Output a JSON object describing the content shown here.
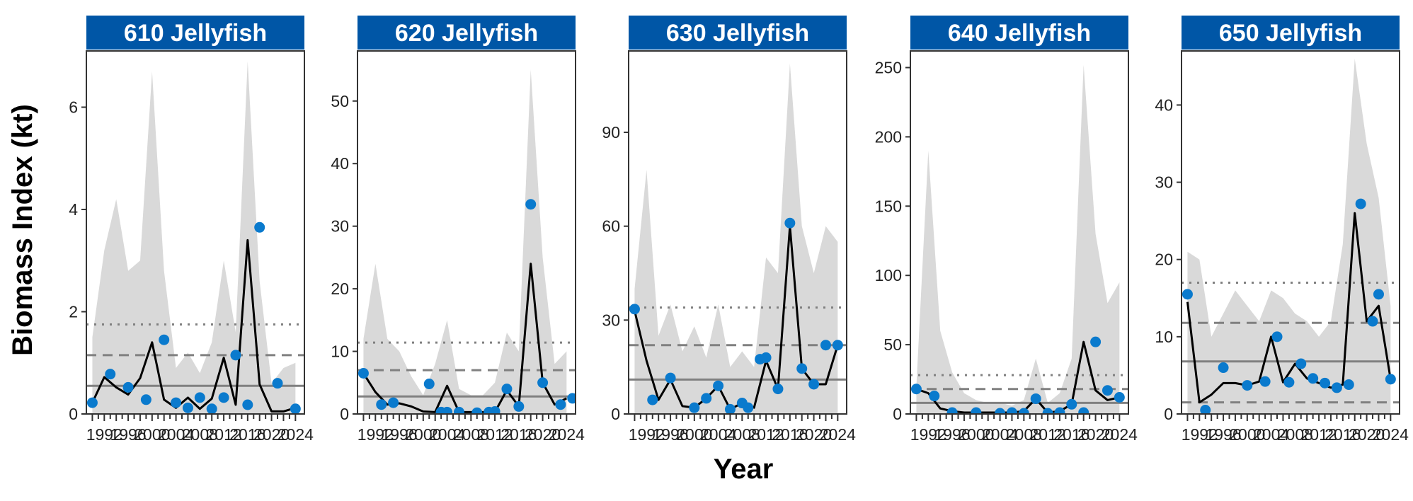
{
  "figure": {
    "ylabel": "Biomass Index (kt)",
    "xlabel": "Year",
    "colors": {
      "strip": "#0056A6",
      "point": "#0A7ACD",
      "ribbon": "#D9D9D9",
      "line": "#000000",
      "ref": "#808080"
    }
  },
  "chart_data": [
    {
      "type": "line",
      "title": "610 Jellyfish",
      "x": [
        1990,
        1992,
        1994,
        1996,
        1998,
        2000,
        2002,
        2004,
        2006,
        2008,
        2010,
        2012,
        2014,
        2016,
        2018,
        2020,
        2022,
        2024
      ],
      "ylim": [
        0,
        7.1
      ],
      "yticks": [
        0,
        2,
        4,
        6
      ],
      "xtick_labels": [
        "1992",
        "1996",
        "2000",
        "2004",
        "2008",
        "2012",
        "2016",
        "2020",
        "2024"
      ],
      "series": [
        {
          "role": "points",
          "x": [
            1990,
            1993,
            1996,
            1999,
            2002,
            2004,
            2006,
            2008,
            2010,
            2012,
            2014,
            2016,
            2018,
            2021,
            2024
          ],
          "y": [
            0.22,
            0.78,
            0.52,
            0.28,
            1.45,
            0.22,
            0.12,
            0.32,
            0.1,
            0.32,
            1.15,
            0.18,
            3.65,
            0.6,
            0.1
          ]
        },
        {
          "role": "fit",
          "y": [
            0.22,
            0.72,
            0.52,
            0.38,
            0.7,
            1.4,
            0.28,
            0.12,
            0.32,
            0.1,
            0.3,
            1.1,
            0.18,
            3.4,
            0.58,
            0.05,
            0.05,
            0.12
          ]
        },
        {
          "role": "ci_upper",
          "y": [
            1.5,
            3.2,
            4.2,
            2.8,
            3.0,
            6.7,
            2.8,
            0.9,
            1.2,
            0.8,
            1.4,
            3.0,
            1.6,
            6.9,
            2.6,
            0.6,
            0.9,
            1.0
          ]
        },
        {
          "role": "ci_lower",
          "y": [
            0,
            0,
            0,
            0,
            0,
            0,
            0,
            0,
            0,
            0,
            0,
            0,
            0,
            0,
            0,
            0,
            0,
            0
          ]
        }
      ],
      "reference_lines": {
        "solid": 0.55,
        "dashed": 1.15,
        "dotted": 1.75
      }
    },
    {
      "type": "line",
      "title": "620 Jellyfish",
      "x": [
        1990,
        1992,
        1994,
        1996,
        1998,
        2000,
        2002,
        2004,
        2006,
        2008,
        2010,
        2012,
        2014,
        2016,
        2018,
        2020,
        2022,
        2024
      ],
      "ylim": [
        0,
        58
      ],
      "yticks": [
        0,
        10,
        20,
        30,
        40,
        50
      ],
      "xtick_labels": [
        "1992",
        "1996",
        "2000",
        "2004",
        "2008",
        "2012",
        "2016",
        "2020",
        "2024"
      ],
      "series": [
        {
          "role": "points",
          "x": [
            1990,
            1993,
            1995,
            2001,
            2003,
            2004,
            2006,
            2009,
            2011,
            2012,
            2014,
            2016,
            2018,
            2020,
            2023,
            2025
          ],
          "y": [
            6.5,
            1.5,
            1.8,
            4.8,
            0.3,
            0.3,
            0.3,
            0.2,
            0.3,
            0.4,
            4.0,
            1.2,
            33.5,
            5.0,
            1.5,
            2.5
          ]
        },
        {
          "role": "fit",
          "y": [
            6.5,
            3.5,
            1.5,
            1.7,
            1.2,
            0.4,
            0.3,
            4.5,
            0.3,
            0.3,
            0.3,
            0.3,
            3.8,
            1.2,
            24.0,
            5.0,
            1.5,
            2.5
          ]
        },
        {
          "role": "ci_upper",
          "y": [
            12,
            24,
            12,
            10,
            6,
            3,
            8,
            15,
            4,
            3,
            3,
            5,
            13,
            10,
            55,
            25,
            8,
            10
          ]
        },
        {
          "role": "ci_lower",
          "y": [
            0,
            0,
            0,
            0,
            0,
            0,
            0,
            0,
            0,
            0,
            0,
            0,
            0,
            0,
            0,
            0,
            0,
            0
          ]
        }
      ],
      "reference_lines": {
        "solid": 2.8,
        "dashed": 7.0,
        "dotted": 11.4
      }
    },
    {
      "type": "line",
      "title": "630 Jellyfish",
      "x": [
        1990,
        1992,
        1994,
        1996,
        1998,
        2000,
        2002,
        2004,
        2006,
        2008,
        2010,
        2012,
        2014,
        2016,
        2018,
        2020,
        2022,
        2024
      ],
      "ylim": [
        0,
        116
      ],
      "yticks": [
        0,
        30,
        60,
        90
      ],
      "xtick_labels": [
        "1992",
        "1996",
        "2000",
        "2004",
        "2008",
        "2012",
        "2016",
        "2020",
        "2024"
      ],
      "series": [
        {
          "role": "points",
          "x": [
            1990,
            1993,
            1996,
            2000,
            2002,
            2004,
            2006,
            2008,
            2009,
            2011,
            2012,
            2014,
            2016,
            2018,
            2020,
            2022,
            2024
          ],
          "y": [
            33.5,
            4.5,
            11.5,
            2.0,
            5.0,
            9.0,
            1.5,
            3.5,
            2.0,
            17.5,
            18.0,
            8.0,
            61.0,
            14.5,
            9.5,
            22.0,
            22.0
          ]
        },
        {
          "role": "fit",
          "y": [
            33,
            17,
            4.5,
            11,
            2.5,
            2,
            5,
            9,
            1.5,
            3.5,
            2,
            17,
            8,
            60,
            14.5,
            9.5,
            9.5,
            22
          ]
        },
        {
          "role": "ci_upper",
          "y": [
            40,
            78,
            25,
            35,
            20,
            28,
            18,
            35,
            15,
            20,
            15,
            50,
            45,
            112,
            60,
            45,
            60,
            55
          ]
        },
        {
          "role": "ci_lower",
          "y": [
            0,
            0,
            0,
            0,
            0,
            0,
            0,
            0,
            0,
            0,
            0,
            0,
            0,
            0,
            0,
            0,
            0,
            0
          ]
        }
      ],
      "reference_lines": {
        "solid": 11.0,
        "dashed": 22.0,
        "dotted": 34.0
      }
    },
    {
      "type": "line",
      "title": "640 Jellyfish",
      "x": [
        1990,
        1992,
        1994,
        1996,
        1998,
        2000,
        2002,
        2004,
        2006,
        2008,
        2010,
        2012,
        2014,
        2016,
        2018,
        2020,
        2022,
        2024
      ],
      "ylim": [
        0,
        262
      ],
      "yticks": [
        0,
        50,
        100,
        150,
        200,
        250
      ],
      "xtick_labels": [
        "1992",
        "1996",
        "2000",
        "2004",
        "2008",
        "2012",
        "2016",
        "2020",
        "2024"
      ],
      "series": [
        {
          "role": "points",
          "x": [
            1990,
            1993,
            1996,
            2000,
            2004,
            2006,
            2008,
            2010,
            2012,
            2014,
            2016,
            2018,
            2020,
            2022,
            2024
          ],
          "y": [
            18,
            13,
            1,
            1,
            0.5,
            1,
            0.5,
            11,
            0.5,
            1,
            7,
            1,
            52,
            17,
            12
          ]
        },
        {
          "role": "fit",
          "y": [
            18,
            15,
            4,
            2,
            1,
            1,
            1,
            1,
            1,
            2,
            11,
            1,
            2,
            7,
            52,
            17,
            10,
            12
          ]
        },
        {
          "role": "ci_upper",
          "y": [
            20,
            190,
            60,
            30,
            15,
            10,
            8,
            8,
            6,
            10,
            40,
            8,
            15,
            40,
            252,
            130,
            80,
            95
          ]
        },
        {
          "role": "ci_lower",
          "y": [
            0,
            0,
            0,
            0,
            0,
            0,
            0,
            0,
            0,
            0,
            0,
            0,
            0,
            0,
            0,
            0,
            0,
            0
          ]
        }
      ],
      "reference_lines": {
        "solid": 8.0,
        "dashed": 18.0,
        "dotted": 28.0
      }
    },
    {
      "type": "line",
      "title": "650 Jellyfish",
      "x": [
        1990,
        1992,
        1994,
        1996,
        1998,
        2000,
        2002,
        2004,
        2006,
        2008,
        2010,
        2012,
        2014,
        2016,
        2018,
        2020,
        2022,
        2024
      ],
      "ylim": [
        0,
        47
      ],
      "yticks": [
        0,
        10,
        20,
        30,
        40
      ],
      "xtick_labels": [
        "1992",
        "1996",
        "2000",
        "2004",
        "2008",
        "2012",
        "2016",
        "2020",
        "2024"
      ],
      "series": [
        {
          "role": "points",
          "x": [
            1990,
            1993,
            1996,
            2000,
            2003,
            2005,
            2007,
            2009,
            2011,
            2013,
            2015,
            2017,
            2019,
            2021,
            2022,
            2024
          ],
          "y": [
            15.5,
            0.5,
            6.0,
            3.7,
            4.2,
            10.0,
            4.1,
            6.5,
            4.6,
            4.0,
            3.4,
            3.8,
            27.2,
            12.0,
            15.5,
            4.5
          ]
        },
        {
          "role": "fit",
          "y": [
            14.5,
            1.5,
            2.5,
            4,
            4,
            3.7,
            4.2,
            10,
            4.1,
            6.5,
            4.6,
            4.0,
            3.4,
            3.8,
            26,
            12,
            14,
            4.5
          ]
        },
        {
          "role": "ci_upper",
          "y": [
            21,
            20,
            10,
            13,
            16,
            14,
            12,
            16,
            15,
            13,
            12,
            10,
            12,
            22,
            46,
            35,
            28,
            14
          ]
        },
        {
          "role": "ci_lower",
          "y": [
            0,
            0,
            0,
            0,
            0,
            0,
            0,
            0,
            0,
            0,
            0,
            0,
            0,
            0,
            0,
            0,
            0,
            0
          ]
        }
      ],
      "reference_lines": {
        "solid": 6.8,
        "dashed": 11.8,
        "dotted": 17.0,
        "dashed_low": 1.5
      }
    }
  ]
}
